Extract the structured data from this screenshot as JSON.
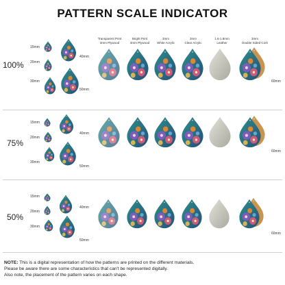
{
  "title": "PATTERN SCALE INDICATOR",
  "materials": [
    {
      "line1": "Transparent Print",
      "line2": "3mm Plywood"
    },
    {
      "line1": "Bright Print",
      "line2": "3mm Plywood"
    },
    {
      "line1": "3mm",
      "line2": "White Acrylic"
    },
    {
      "line1": "3mm",
      "line2": "Clear Acrylic"
    },
    {
      "line1": "1.6-1.8mm",
      "line2": "Leather"
    },
    {
      "line1": "3mm",
      "line2": "Double Sided Cork"
    }
  ],
  "size_labels": {
    "s15": "15mm",
    "s20": "20mm",
    "s30": "30mm",
    "s40": "40mm",
    "s50": "50mm",
    "s60": "60mm"
  },
  "sections": [
    {
      "scale": "100%"
    },
    {
      "scale": "75%"
    },
    {
      "scale": "50%"
    }
  ],
  "note": {
    "label": "NOTE:",
    "line1": " This is a digital representation of how the patterns are printed on the different materials.",
    "line2": "Please be aware there are some characteristics that can't be represented digitally.",
    "line3": "Also note, the placement of the pattern varies on each shape."
  },
  "colors": {
    "base_teal": "#2f8f8a",
    "purple": "#8a5bbf",
    "orange": "#f08a2e",
    "pink": "#e85a7a",
    "leather": "#c9c9c0",
    "cork": "#c9944f"
  }
}
